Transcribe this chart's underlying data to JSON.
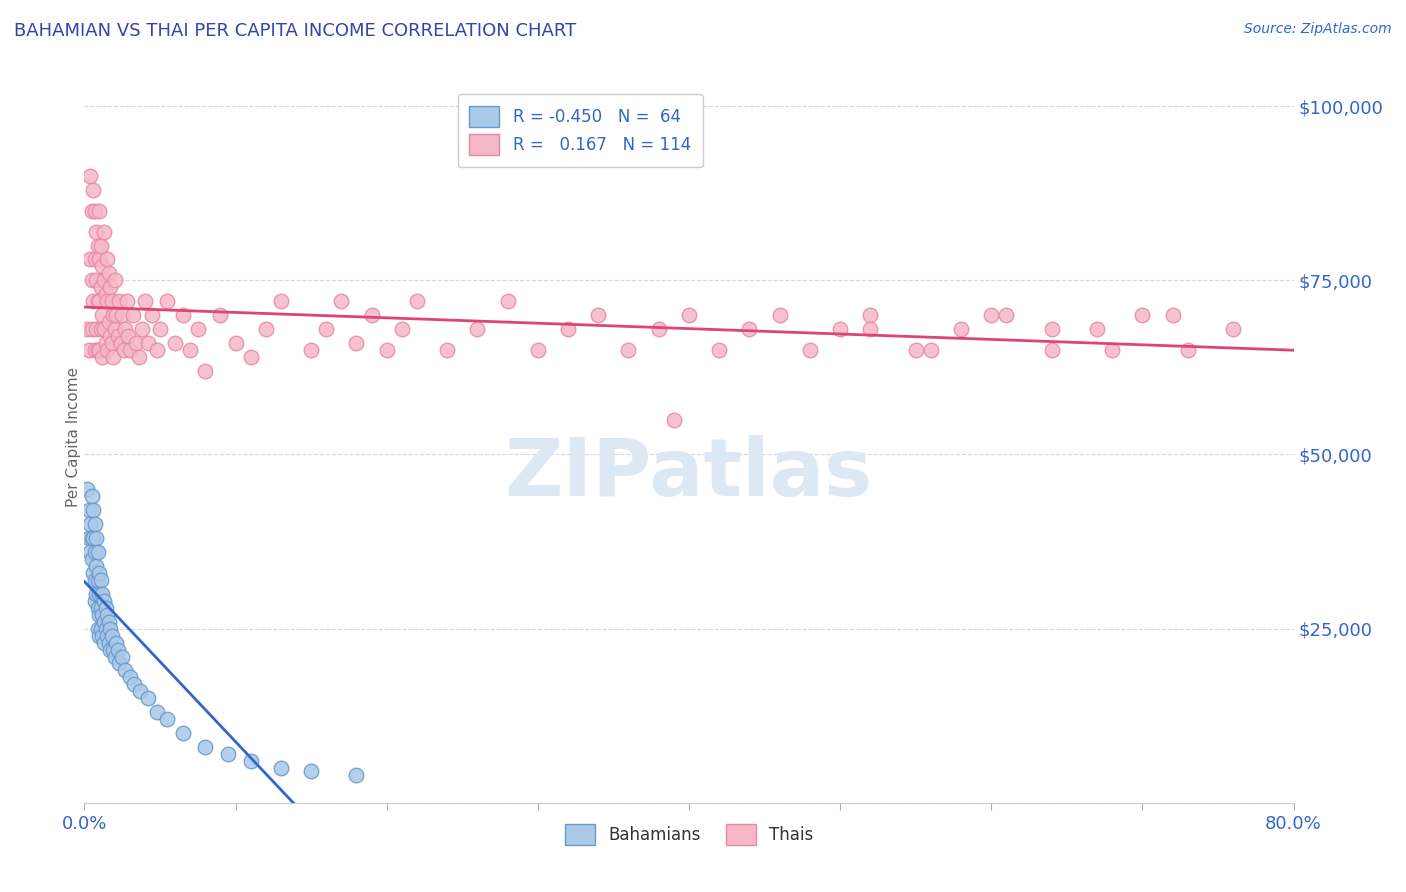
{
  "title": "BAHAMIAN VS THAI PER CAPITA INCOME CORRELATION CHART",
  "source_text": "Source: ZipAtlas.com",
  "ylabel": "Per Capita Income",
  "xlim": [
    0.0,
    0.8
  ],
  "ylim": [
    0,
    105000
  ],
  "yticks": [
    0,
    25000,
    50000,
    75000,
    100000
  ],
  "ytick_labels": [
    "",
    "$25,000",
    "$50,000",
    "$75,000",
    "$100,000"
  ],
  "xticks": [
    0.0,
    0.1,
    0.2,
    0.3,
    0.4,
    0.5,
    0.6,
    0.7,
    0.8
  ],
  "xtick_labels": [
    "0.0%",
    "",
    "",
    "",
    "",
    "",
    "",
    "",
    "80.0%"
  ],
  "bahamian_color": "#aac8e8",
  "thai_color": "#f5b8c8",
  "bahamian_edge": "#6699cc",
  "thai_edge": "#e888a8",
  "trend_blue": "#3366cc",
  "trend_pink": "#dd4477",
  "title_color": "#3344aa",
  "axis_color": "#3366cc",
  "source_color": "#3366cc",
  "grid_color": "#ccccdd",
  "background_color": "#ffffff",
  "watermark_color": "#dde8f5",
  "bahamian_x": [
    0.002,
    0.003,
    0.003,
    0.004,
    0.004,
    0.005,
    0.005,
    0.005,
    0.006,
    0.006,
    0.006,
    0.007,
    0.007,
    0.007,
    0.007,
    0.008,
    0.008,
    0.008,
    0.009,
    0.009,
    0.009,
    0.009,
    0.01,
    0.01,
    0.01,
    0.01,
    0.011,
    0.011,
    0.011,
    0.012,
    0.012,
    0.012,
    0.013,
    0.013,
    0.013,
    0.014,
    0.014,
    0.015,
    0.015,
    0.016,
    0.016,
    0.017,
    0.017,
    0.018,
    0.019,
    0.02,
    0.021,
    0.022,
    0.023,
    0.025,
    0.027,
    0.03,
    0.033,
    0.037,
    0.042,
    0.048,
    0.055,
    0.065,
    0.08,
    0.095,
    0.11,
    0.13,
    0.15,
    0.18
  ],
  "bahamian_y": [
    45000,
    42000,
    38000,
    40000,
    36000,
    44000,
    38000,
    35000,
    42000,
    38000,
    33000,
    40000,
    36000,
    32000,
    29000,
    38000,
    34000,
    30000,
    36000,
    32000,
    28000,
    25000,
    33000,
    30000,
    27000,
    24000,
    32000,
    28000,
    25000,
    30000,
    27000,
    24000,
    29000,
    26000,
    23000,
    28000,
    25000,
    27000,
    24000,
    26000,
    23000,
    25000,
    22000,
    24000,
    22000,
    21000,
    23000,
    22000,
    20000,
    21000,
    19000,
    18000,
    17000,
    16000,
    15000,
    13000,
    12000,
    10000,
    8000,
    7000,
    6000,
    5000,
    4500,
    4000
  ],
  "thai_x": [
    0.002,
    0.003,
    0.004,
    0.004,
    0.005,
    0.005,
    0.005,
    0.006,
    0.006,
    0.007,
    0.007,
    0.007,
    0.008,
    0.008,
    0.008,
    0.009,
    0.009,
    0.009,
    0.01,
    0.01,
    0.01,
    0.01,
    0.011,
    0.011,
    0.011,
    0.012,
    0.012,
    0.012,
    0.013,
    0.013,
    0.013,
    0.014,
    0.014,
    0.015,
    0.015,
    0.015,
    0.016,
    0.016,
    0.017,
    0.017,
    0.018,
    0.018,
    0.019,
    0.019,
    0.02,
    0.02,
    0.021,
    0.022,
    0.023,
    0.024,
    0.025,
    0.026,
    0.027,
    0.028,
    0.029,
    0.03,
    0.032,
    0.034,
    0.036,
    0.038,
    0.04,
    0.042,
    0.045,
    0.048,
    0.05,
    0.055,
    0.06,
    0.065,
    0.07,
    0.075,
    0.08,
    0.09,
    0.1,
    0.11,
    0.12,
    0.13,
    0.15,
    0.16,
    0.17,
    0.18,
    0.19,
    0.2,
    0.21,
    0.22,
    0.24,
    0.26,
    0.28,
    0.3,
    0.32,
    0.34,
    0.36,
    0.38,
    0.39,
    0.4,
    0.42,
    0.44,
    0.46,
    0.48,
    0.5,
    0.52,
    0.55,
    0.58,
    0.61,
    0.64,
    0.67,
    0.7,
    0.73,
    0.76,
    0.72,
    0.68,
    0.64,
    0.6,
    0.56,
    0.52
  ],
  "thai_y": [
    68000,
    65000,
    90000,
    78000,
    85000,
    75000,
    68000,
    88000,
    72000,
    85000,
    78000,
    65000,
    82000,
    75000,
    68000,
    80000,
    72000,
    65000,
    78000,
    85000,
    72000,
    65000,
    80000,
    74000,
    68000,
    77000,
    70000,
    64000,
    75000,
    82000,
    68000,
    73000,
    66000,
    78000,
    72000,
    65000,
    76000,
    69000,
    74000,
    67000,
    72000,
    66000,
    70000,
    64000,
    68000,
    75000,
    70000,
    67000,
    72000,
    66000,
    70000,
    65000,
    68000,
    72000,
    67000,
    65000,
    70000,
    66000,
    64000,
    68000,
    72000,
    66000,
    70000,
    65000,
    68000,
    72000,
    66000,
    70000,
    65000,
    68000,
    62000,
    70000,
    66000,
    64000,
    68000,
    72000,
    65000,
    68000,
    72000,
    66000,
    70000,
    65000,
    68000,
    72000,
    65000,
    68000,
    72000,
    65000,
    68000,
    70000,
    65000,
    68000,
    55000,
    70000,
    65000,
    68000,
    70000,
    65000,
    68000,
    70000,
    65000,
    68000,
    70000,
    65000,
    68000,
    70000,
    65000,
    68000,
    70000,
    65000,
    68000,
    70000,
    65000,
    68000
  ]
}
